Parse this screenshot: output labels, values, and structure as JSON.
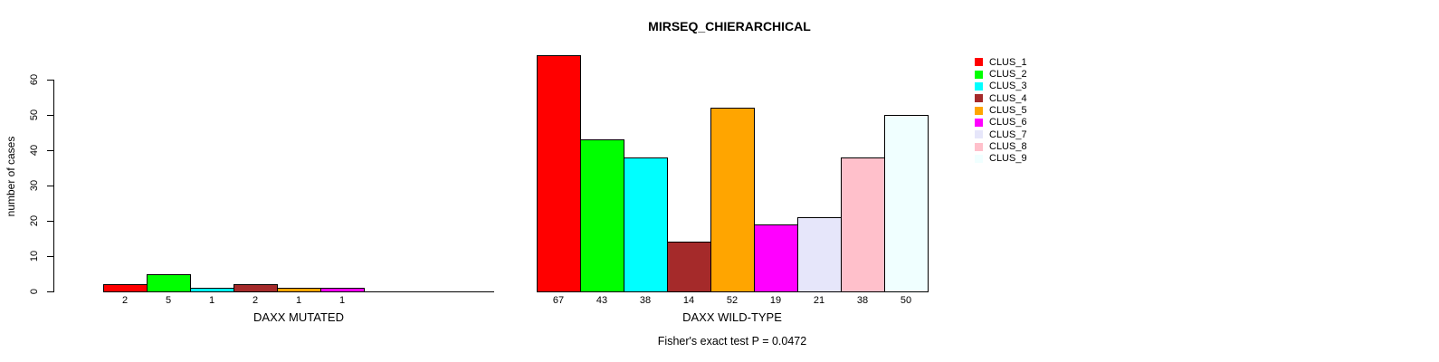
{
  "chart_data": {
    "type": "bar",
    "title": "MIRSEQ_CHIERARCHICAL",
    "ylabel": "number of cases",
    "ylim": [
      0,
      60
    ],
    "yticks": [
      0,
      10,
      20,
      30,
      40,
      50,
      60
    ],
    "grid": false,
    "legend_position": "right",
    "clusters": [
      "CLUS_1",
      "CLUS_2",
      "CLUS_3",
      "CLUS_4",
      "CLUS_5",
      "CLUS_6",
      "CLUS_7",
      "CLUS_8",
      "CLUS_9"
    ],
    "colors": [
      "#ff0000",
      "#00ff00",
      "#00ffff",
      "#a52a2a",
      "#ffa500",
      "#ff00ff",
      "#e6e6fa",
      "#ffc0cb",
      "#f0ffff"
    ],
    "groups": [
      {
        "label": "DAXX MUTATED",
        "values": [
          2,
          5,
          1,
          2,
          1,
          1,
          0,
          0,
          0
        ]
      },
      {
        "label": "DAXX WILD-TYPE",
        "values": [
          67,
          43,
          38,
          14,
          52,
          19,
          21,
          38,
          50
        ]
      }
    ],
    "footnote": "Fisher's exact test P = 0.0472"
  }
}
